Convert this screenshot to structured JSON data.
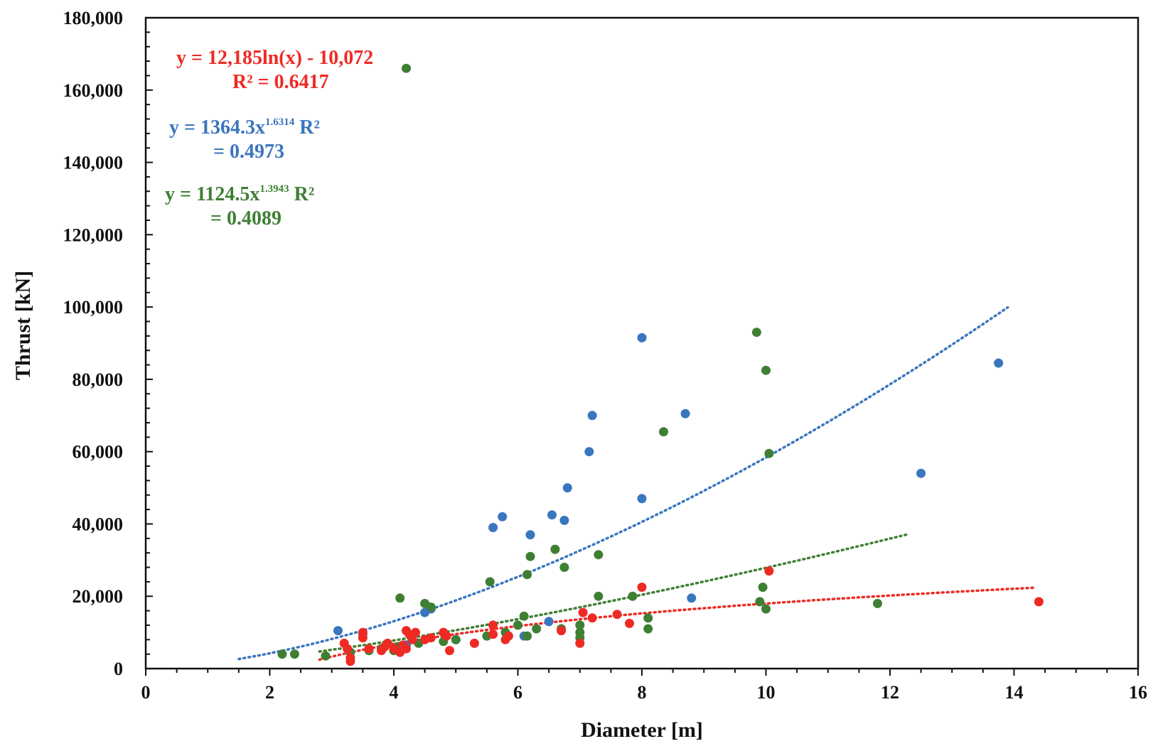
{
  "chart_data": {
    "type": "scatter",
    "title": "",
    "xlabel": "Diameter [m]",
    "ylabel": "Thrust [kN]",
    "xlim": [
      0,
      16
    ],
    "ylim": [
      0,
      180000
    ],
    "x_ticks": [
      0,
      2,
      4,
      6,
      8,
      10,
      12,
      14,
      16
    ],
    "x_tick_labels": [
      "0",
      "2",
      "4",
      "6",
      "8",
      "10",
      "12",
      "14",
      "16"
    ],
    "y_ticks": [
      0,
      20000,
      40000,
      60000,
      80000,
      100000,
      120000,
      140000,
      160000,
      180000
    ],
    "y_tick_labels": [
      "0",
      "20,000",
      "40,000",
      "60,000",
      "80,000",
      "100,000",
      "120,000",
      "140,000",
      "160,000",
      "180,000"
    ],
    "grid": false,
    "series": [
      {
        "name": "blue",
        "color": "#3a76bf",
        "points": [
          [
            3.1,
            10500
          ],
          [
            3.5,
            9500
          ],
          [
            4.2,
            6500
          ],
          [
            4.5,
            15500
          ],
          [
            4.6,
            16500
          ],
          [
            5.6,
            39000
          ],
          [
            5.75,
            42000
          ],
          [
            6.2,
            37000
          ],
          [
            6.55,
            42500
          ],
          [
            6.5,
            13000
          ],
          [
            6.75,
            41000
          ],
          [
            6.8,
            50000
          ],
          [
            7.15,
            60000
          ],
          [
            7.2,
            70000
          ],
          [
            8.0,
            47000
          ],
          [
            8.0,
            91500
          ],
          [
            8.7,
            70500
          ],
          [
            8.8,
            19500
          ],
          [
            12.5,
            54000
          ],
          [
            13.75,
            84500
          ],
          [
            5.0,
            8000
          ],
          [
            6.1,
            9000
          ]
        ],
        "trendline": {
          "type": "power",
          "a": 1364.3,
          "b": 1.6314,
          "x_range": [
            1.5,
            13.9
          ],
          "dash": "dotted"
        },
        "equation": {
          "prefix": "y = 1364.3x",
          "exponent": "1.6314",
          "suffix": " R²",
          "line2": "= 0.4973"
        }
      },
      {
        "name": "green",
        "color": "#3f7f34",
        "points": [
          [
            2.2,
            4000
          ],
          [
            2.4,
            4000
          ],
          [
            2.9,
            3500
          ],
          [
            3.3,
            4500
          ],
          [
            3.6,
            5000
          ],
          [
            3.8,
            5500
          ],
          [
            4.0,
            5000
          ],
          [
            4.05,
            6000
          ],
          [
            4.1,
            19500
          ],
          [
            4.2,
            166000
          ],
          [
            4.4,
            7000
          ],
          [
            4.5,
            18000
          ],
          [
            4.6,
            17000
          ],
          [
            4.8,
            7500
          ],
          [
            5.0,
            8000
          ],
          [
            5.5,
            9000
          ],
          [
            5.55,
            24000
          ],
          [
            5.8,
            10000
          ],
          [
            6.0,
            12000
          ],
          [
            6.1,
            14500
          ],
          [
            6.15,
            26000
          ],
          [
            6.2,
            31000
          ],
          [
            6.3,
            11000
          ],
          [
            6.6,
            33000
          ],
          [
            6.7,
            11000
          ],
          [
            6.75,
            28000
          ],
          [
            7.0,
            12000
          ],
          [
            7.0,
            10000
          ],
          [
            7.0,
            8500
          ],
          [
            7.3,
            31500
          ],
          [
            7.3,
            20000
          ],
          [
            7.85,
            20000
          ],
          [
            8.1,
            11000
          ],
          [
            8.1,
            14000
          ],
          [
            8.35,
            65500
          ],
          [
            9.85,
            93000
          ],
          [
            9.9,
            18500
          ],
          [
            9.95,
            22500
          ],
          [
            10.0,
            16500
          ],
          [
            10.0,
            82500
          ],
          [
            10.05,
            59500
          ],
          [
            11.8,
            18000
          ],
          [
            6.15,
            9000
          ]
        ],
        "trendline": {
          "type": "power",
          "a": 1124.5,
          "b": 1.3943,
          "x_range": [
            2.8,
            12.3
          ],
          "dash": "dotted"
        },
        "equation": {
          "prefix": "y = 1124.5x",
          "exponent": "1.3943",
          "suffix": " R²",
          "line2": "= 0.4089"
        }
      },
      {
        "name": "red",
        "color": "#ee2a24",
        "points": [
          [
            3.2,
            7000
          ],
          [
            3.25,
            5500
          ],
          [
            3.3,
            3000
          ],
          [
            3.3,
            2000
          ],
          [
            3.5,
            10000
          ],
          [
            3.5,
            8500
          ],
          [
            3.6,
            5500
          ],
          [
            3.8,
            5000
          ],
          [
            3.85,
            6000
          ],
          [
            3.9,
            7000
          ],
          [
            4.0,
            5500
          ],
          [
            4.1,
            4500
          ],
          [
            4.15,
            6500
          ],
          [
            4.2,
            10500
          ],
          [
            4.2,
            5500
          ],
          [
            4.25,
            9500
          ],
          [
            4.3,
            8000
          ],
          [
            4.5,
            8000
          ],
          [
            4.6,
            8500
          ],
          [
            4.8,
            10000
          ],
          [
            4.85,
            9000
          ],
          [
            4.9,
            5000
          ],
          [
            5.3,
            7000
          ],
          [
            5.6,
            12000
          ],
          [
            5.8,
            8000
          ],
          [
            5.85,
            9000
          ],
          [
            6.7,
            10500
          ],
          [
            7.0,
            7000
          ],
          [
            7.05,
            15500
          ],
          [
            7.2,
            14000
          ],
          [
            7.6,
            15000
          ],
          [
            7.8,
            12500
          ],
          [
            8.0,
            22500
          ],
          [
            10.05,
            27000
          ],
          [
            14.4,
            18500
          ],
          [
            5.6,
            9500
          ],
          [
            4.35,
            10000
          ]
        ],
        "trendline": {
          "type": "log",
          "a": 12185,
          "b": -10072,
          "x_range": [
            2.8,
            14.35
          ],
          "dash": "dotted"
        },
        "equation": {
          "prefix": "y = 12,185ln(x) - 10,072",
          "line2": "R² = 0.6417"
        }
      }
    ]
  }
}
